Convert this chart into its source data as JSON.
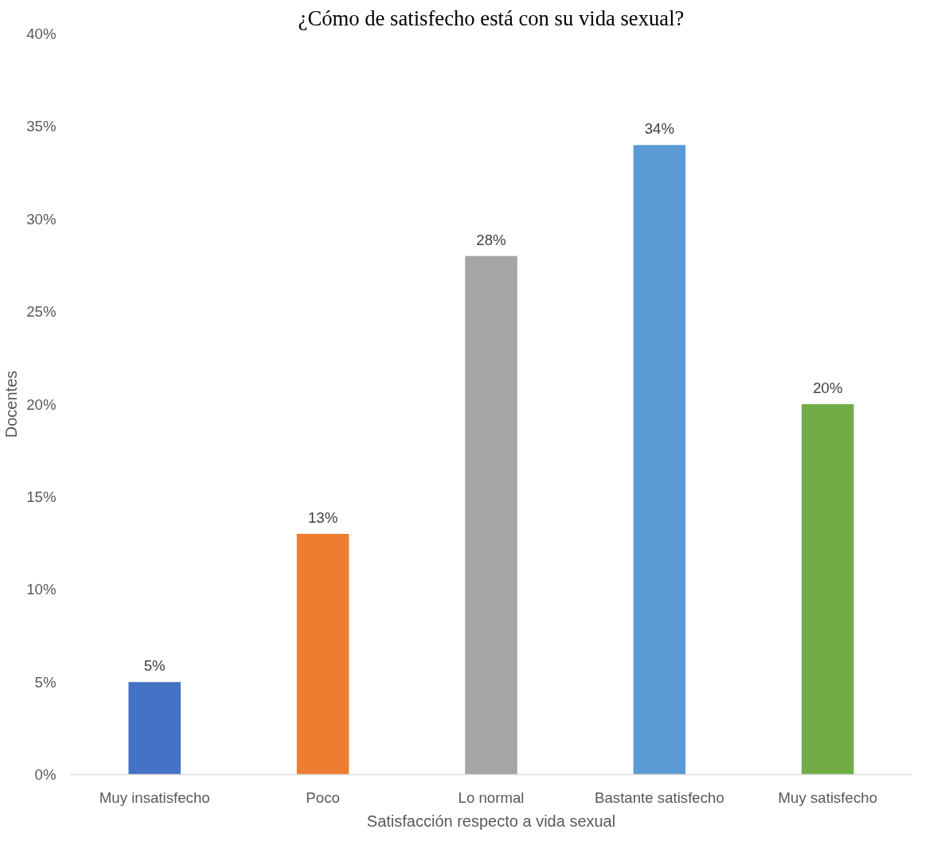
{
  "chart_data": {
    "type": "bar",
    "title": "¿Cómo de satisfecho está con su vida sexual?",
    "xlabel": "Satisfacción respecto a vida sexual",
    "ylabel": "Docentes",
    "categories": [
      "Muy insatisfecho",
      "Poco",
      "Lo normal",
      "Bastante satisfecho",
      "Muy satisfecho"
    ],
    "values": [
      5,
      13,
      28,
      34,
      20
    ],
    "colors": [
      "#4472c4",
      "#ed7d31",
      "#a5a5a5",
      "#5b9bd5",
      "#70ad47"
    ],
    "value_labels": [
      "5%",
      "13%",
      "28%",
      "34%",
      "20%"
    ],
    "ylim": [
      0,
      40
    ],
    "yticks": [
      {
        "value": 0,
        "label": "0%"
      },
      {
        "value": 5,
        "label": "5%"
      },
      {
        "value": 10,
        "label": "10%"
      },
      {
        "value": 15,
        "label": "15%"
      },
      {
        "value": 20,
        "label": "20%"
      },
      {
        "value": 25,
        "label": "25%"
      },
      {
        "value": 30,
        "label": "30%"
      },
      {
        "value": 35,
        "label": "35%"
      },
      {
        "value": 40,
        "label": "40%"
      }
    ],
    "grid": false
  }
}
